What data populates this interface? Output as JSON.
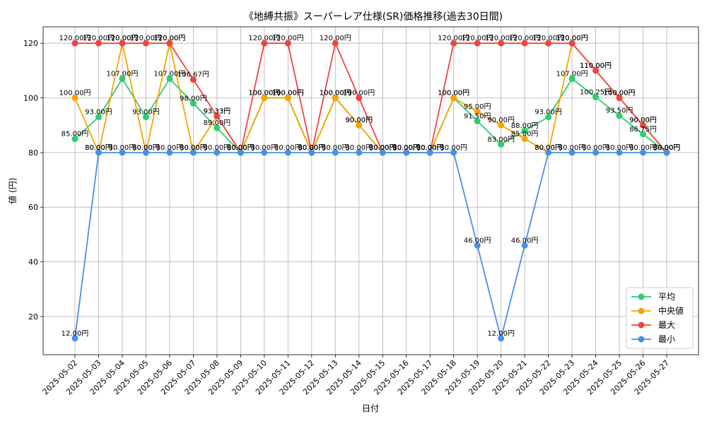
{
  "chart_data": {
    "type": "line",
    "title": "《地縛共振》スーパーレア仕様(SR)価格推移(過去30日間)",
    "xlabel": "日付",
    "ylabel": "値 (円)",
    "ylim": [
      6,
      126
    ],
    "yticks": [
      20,
      40,
      60,
      80,
      100,
      120
    ],
    "grid": true,
    "legend_position": "lower-right",
    "value_suffix": "円",
    "categories": [
      "2025-05-02",
      "2025-05-03",
      "2025-05-04",
      "2025-05-05",
      "2025-05-06",
      "2025-05-07",
      "2025-05-08",
      "2025-05-09",
      "2025-05-10",
      "2025-05-11",
      "2025-05-12",
      "2025-05-13",
      "2025-05-14",
      "2025-05-15",
      "2025-05-16",
      "2025-05-17",
      "2025-05-18",
      "2025-05-19",
      "2025-05-20",
      "2025-05-21",
      "2025-05-22",
      "2025-05-23",
      "2025-05-24",
      "2025-05-25",
      "2025-05-26",
      "2025-05-27"
    ],
    "series": [
      {
        "name": "平均",
        "color": "#2ecc71",
        "values": [
          85,
          93,
          107,
          93,
          107,
          98,
          89,
          80,
          100,
          100,
          80,
          100,
          90,
          80,
          80,
          80,
          100,
          91.5,
          83,
          88,
          93,
          107,
          100.25,
          93.5,
          86.75,
          80
        ]
      },
      {
        "name": "中央値",
        "color": "#f5a500",
        "values": [
          100,
          80,
          120,
          80,
          120,
          80,
          93.33,
          80,
          100,
          100,
          80,
          100,
          90,
          80,
          80,
          80,
          100,
          95,
          90,
          85,
          80,
          120,
          110,
          100,
          90,
          80
        ]
      },
      {
        "name": "最大",
        "color": "#ef4444",
        "values": [
          120,
          120,
          120,
          120,
          120,
          106.67,
          93.33,
          80,
          120,
          120,
          80,
          120,
          100,
          80,
          80,
          80,
          120,
          120,
          120,
          120,
          120,
          120,
          110,
          100,
          90,
          80
        ]
      },
      {
        "name": "最小",
        "color": "#4a90e2",
        "values": [
          12,
          80,
          80,
          80,
          80,
          80,
          80,
          80,
          80,
          80,
          80,
          80,
          80,
          80,
          80,
          80,
          80,
          46,
          12,
          46,
          80,
          80,
          80,
          80,
          80,
          80
        ]
      }
    ]
  }
}
